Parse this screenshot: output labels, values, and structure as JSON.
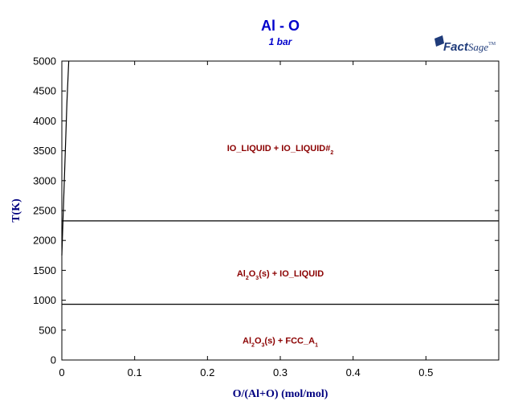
{
  "chart_data": {
    "type": "line",
    "title": "Al - O",
    "subtitle": "1 bar",
    "xlabel": "O/(Al+O) (mol/mol)",
    "ylabel": "T(K)",
    "xlim": [
      0,
      0.6
    ],
    "ylim": [
      0,
      5000
    ],
    "x_ticks": [
      0,
      0.1,
      0.2,
      0.3,
      0.4,
      0.5
    ],
    "x_tick_labels": [
      "0",
      "0.1",
      "0.2",
      "0.3",
      "0.4",
      "0.5"
    ],
    "y_ticks": [
      0,
      500,
      1000,
      1500,
      2000,
      2500,
      3000,
      3500,
      4000,
      4500,
      5000
    ],
    "y_tick_labels": [
      "0",
      "500",
      "1000",
      "1500",
      "2000",
      "2500",
      "3000",
      "3500",
      "4000",
      "4500",
      "5000"
    ],
    "lines": [
      {
        "x": [
          0,
          0.6
        ],
        "y": [
          933,
          933
        ]
      },
      {
        "x": [
          0,
          0.6
        ],
        "y": [
          2327,
          2327
        ]
      },
      {
        "x": [
          0.0,
          0.0015,
          0.004,
          0.007,
          0.0095
        ],
        "y": [
          1750,
          2327,
          3200,
          4300,
          5000
        ]
      }
    ],
    "regions": [
      {
        "x": 0.3,
        "y": 3550,
        "text": "IO_LIQUID + IO_LIQUID#2"
      },
      {
        "x": 0.3,
        "y": 1450,
        "text": "Al2O3(s) + IO_LIQUID"
      },
      {
        "x": 0.3,
        "y": 330,
        "text": "Al2O3(s) + FCC_A1"
      }
    ]
  },
  "logo": {
    "main": "Fact",
    "sage": "Sage",
    "tm": "TM"
  }
}
